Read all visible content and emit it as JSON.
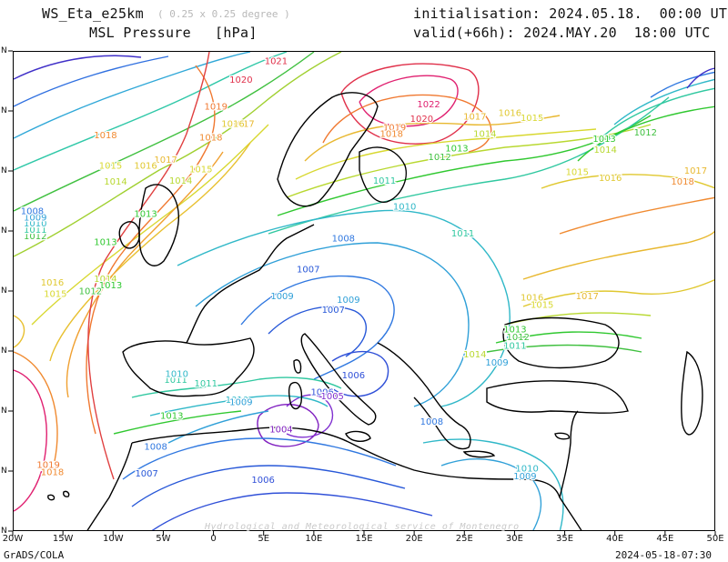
{
  "header": {
    "model": "WS_Eta_e25km",
    "resolution": "( 0.25 x 0.25 degree )",
    "field": "MSL Pressure",
    "unit": "[hPa]",
    "init": "initialisation: 2024.05.18.  00:00 UTC",
    "valid": "valid(+66h): 2024.MAY.20  18:00 UTC"
  },
  "footer": {
    "software": "GrADS/COLA",
    "timestamp": "2024-05-18-07:30",
    "watermark": "Hydrological and Meteorological service of Montenegro"
  },
  "map": {
    "lon_labels": [
      "20W",
      "15W",
      "10W",
      "5W",
      "0",
      "5E",
      "10E",
      "15E",
      "20E",
      "25E",
      "30E",
      "35E",
      "40E",
      "45E",
      "50E"
    ],
    "lat_labels": [
      "N",
      "N",
      "N",
      "N",
      "N",
      "N",
      "N",
      "N",
      "N"
    ],
    "coast_color": "#000000",
    "contour_labels": [
      {
        "t": "1021",
        "lon": 5,
        "lat": 65,
        "color": "#e0304a"
      },
      {
        "t": "1020",
        "lon": 1.5,
        "lat": 63.5,
        "color": "#e0304a"
      },
      {
        "t": "1019",
        "lon": -1,
        "lat": 61.3,
        "color": "#f07830"
      },
      {
        "t": "1018",
        "lon": -1.5,
        "lat": 58.8,
        "color": "#f08a30"
      },
      {
        "t": "1017",
        "lon": -6,
        "lat": 57,
        "color": "#e8b830"
      },
      {
        "t": "1016",
        "lon": -8,
        "lat": 56.5,
        "color": "#e0c830"
      },
      {
        "t": "1015",
        "lon": -2.5,
        "lat": 56.2,
        "color": "#d8d830"
      },
      {
        "t": "1014",
        "lon": -4.5,
        "lat": 55.3,
        "color": "#b8d830"
      },
      {
        "t": "1013",
        "lon": -12,
        "lat": 50.3,
        "color": "#30c830"
      },
      {
        "t": "1012",
        "lon": -19,
        "lat": 50.8,
        "color": "#40c040"
      },
      {
        "t": "1011",
        "lon": -19,
        "lat": 51.3,
        "color": "#30c8a0"
      },
      {
        "t": "1010",
        "lon": -19,
        "lat": 51.8,
        "color": "#30b8c8"
      },
      {
        "t": "1009",
        "lon": -19,
        "lat": 52.3,
        "color": "#30a0d8"
      },
      {
        "t": "1008",
        "lon": -19.3,
        "lat": 52.8,
        "color": "#3078e0"
      },
      {
        "t": "1016",
        "lon": -17.3,
        "lat": 47,
        "color": "#e0c830"
      },
      {
        "t": "1015",
        "lon": -17,
        "lat": 46.1,
        "color": "#d8d830"
      },
      {
        "t": "1014",
        "lon": -12,
        "lat": 47.3,
        "color": "#b8d830"
      },
      {
        "t": "1013",
        "lon": -11.5,
        "lat": 46.8,
        "color": "#30c830"
      },
      {
        "t": "1012",
        "lon": -13.5,
        "lat": 46.3,
        "color": "#40c040"
      },
      {
        "t": "1013",
        "lon": -8,
        "lat": 52.6,
        "color": "#30c830"
      },
      {
        "t": "1017",
        "lon": 1.7,
        "lat": 59.9,
        "color": "#e8b830"
      },
      {
        "t": "1016",
        "lon": 0.7,
        "lat": 59.9,
        "color": "#e0c830"
      },
      {
        "t": "1018",
        "lon": -12,
        "lat": 59,
        "color": "#f08a30"
      },
      {
        "t": "1015",
        "lon": -11.5,
        "lat": 56.5,
        "color": "#d8d830"
      },
      {
        "t": "1014",
        "lon": -11,
        "lat": 55.2,
        "color": "#b8d830"
      },
      {
        "t": "1022",
        "lon": 20.2,
        "lat": 61.5,
        "color": "#e02070"
      },
      {
        "t": "1020",
        "lon": 19.5,
        "lat": 60.3,
        "color": "#e0304a"
      },
      {
        "t": "1019",
        "lon": 16.8,
        "lat": 59.6,
        "color": "#f07830"
      },
      {
        "t": "1018",
        "lon": 16.5,
        "lat": 59.1,
        "color": "#f08a30"
      },
      {
        "t": "1017",
        "lon": 24.8,
        "lat": 60.5,
        "color": "#e8b830"
      },
      {
        "t": "1016",
        "lon": 28.3,
        "lat": 60.8,
        "color": "#e0c830"
      },
      {
        "t": "1015",
        "lon": 30.5,
        "lat": 60.4,
        "color": "#d8d830"
      },
      {
        "t": "1014",
        "lon": 25.8,
        "lat": 59.1,
        "color": "#b8d830"
      },
      {
        "t": "1013",
        "lon": 23,
        "lat": 57.9,
        "color": "#30c830"
      },
      {
        "t": "1012",
        "lon": 21.3,
        "lat": 57.2,
        "color": "#40c040"
      },
      {
        "t": "1011",
        "lon": 15.8,
        "lat": 55.3,
        "color": "#30c8a0"
      },
      {
        "t": "1010",
        "lon": 17.8,
        "lat": 53.2,
        "color": "#30b8c8"
      },
      {
        "t": "1011",
        "lon": 23.6,
        "lat": 51,
        "color": "#30c8a0"
      },
      {
        "t": "1008",
        "lon": 11.7,
        "lat": 50.6,
        "color": "#3078e0"
      },
      {
        "t": "1007",
        "lon": 8.2,
        "lat": 48.1,
        "color": "#2858d8"
      },
      {
        "t": "1009",
        "lon": 5.6,
        "lat": 45.9,
        "color": "#30a0d8"
      },
      {
        "t": "1007",
        "lon": 10.7,
        "lat": 44.8,
        "color": "#2858d8"
      },
      {
        "t": "1009",
        "lon": 12.2,
        "lat": 45.6,
        "color": "#30a0d8"
      },
      {
        "t": "1006",
        "lon": 12.7,
        "lat": 39.5,
        "color": "#3050d8"
      },
      {
        "t": "1006",
        "lon": 9.6,
        "lat": 38.1,
        "color": "#3050d8"
      },
      {
        "t": "1005",
        "lon": 10.6,
        "lat": 37.8,
        "color": "#8030d0"
      },
      {
        "t": "1004",
        "lon": 5.5,
        "lat": 35.1,
        "color": "#8020c0"
      },
      {
        "t": "1010",
        "lon": 1.1,
        "lat": 37.5,
        "color": "#30b8c8"
      },
      {
        "t": "1009",
        "lon": 1.5,
        "lat": 37.3,
        "color": "#30a0d8"
      },
      {
        "t": "1011",
        "lon": -2,
        "lat": 38.8,
        "color": "#30c8a0"
      },
      {
        "t": "1011",
        "lon": -5,
        "lat": 39.1,
        "color": "#30c8a0"
      },
      {
        "t": "1010",
        "lon": -4.9,
        "lat": 39.6,
        "color": "#30b8c8"
      },
      {
        "t": "1013",
        "lon": -5.4,
        "lat": 36.2,
        "color": "#30c830"
      },
      {
        "t": "1008",
        "lon": -7,
        "lat": 33.7,
        "color": "#3078e0"
      },
      {
        "t": "1007",
        "lon": -7.9,
        "lat": 31.5,
        "color": "#2858d8"
      },
      {
        "t": "1006",
        "lon": 3.7,
        "lat": 31,
        "color": "#3050d8"
      },
      {
        "t": "1008",
        "lon": 20.5,
        "lat": 35.7,
        "color": "#3078e0"
      },
      {
        "t": "1010",
        "lon": 30,
        "lat": 31.9,
        "color": "#30b8c8"
      },
      {
        "t": "1009",
        "lon": 29.8,
        "lat": 31.3,
        "color": "#30a0d8"
      },
      {
        "t": "1011",
        "lon": 28.8,
        "lat": 41.9,
        "color": "#30c8a0"
      },
      {
        "t": "1012",
        "lon": 29.1,
        "lat": 42.6,
        "color": "#40c040"
      },
      {
        "t": "1013",
        "lon": 28.8,
        "lat": 43.2,
        "color": "#30c830"
      },
      {
        "t": "1009",
        "lon": 27,
        "lat": 40.5,
        "color": "#30a0d8"
      },
      {
        "t": "1014",
        "lon": 24.8,
        "lat": 41.2,
        "color": "#b8d830"
      },
      {
        "t": "1016",
        "lon": 30.5,
        "lat": 45.8,
        "color": "#e0c830"
      },
      {
        "t": "1015",
        "lon": 31.5,
        "lat": 45.2,
        "color": "#d8d830"
      },
      {
        "t": "1017",
        "lon": 36,
        "lat": 45.9,
        "color": "#e8b830"
      },
      {
        "t": "1015",
        "lon": 35,
        "lat": 56,
        "color": "#d8d830"
      },
      {
        "t": "1016",
        "lon": 38.3,
        "lat": 55.5,
        "color": "#e0c830"
      },
      {
        "t": "1017",
        "lon": 46.8,
        "lat": 56.1,
        "color": "#e8b830"
      },
      {
        "t": "1018",
        "lon": 45.5,
        "lat": 55.2,
        "color": "#f08a30"
      },
      {
        "t": "1013",
        "lon": 37.7,
        "lat": 58.7,
        "color": "#30c830"
      },
      {
        "t": "1014",
        "lon": 37.8,
        "lat": 57.8,
        "color": "#b8d830"
      },
      {
        "t": "1012",
        "lon": 41.8,
        "lat": 59.2,
        "color": "#40c040"
      },
      {
        "t": "1019",
        "lon": -17.7,
        "lat": 32.2,
        "color": "#f07830"
      },
      {
        "t": "1018",
        "lon": -17.3,
        "lat": 31.6,
        "color": "#f08a30"
      }
    ]
  }
}
